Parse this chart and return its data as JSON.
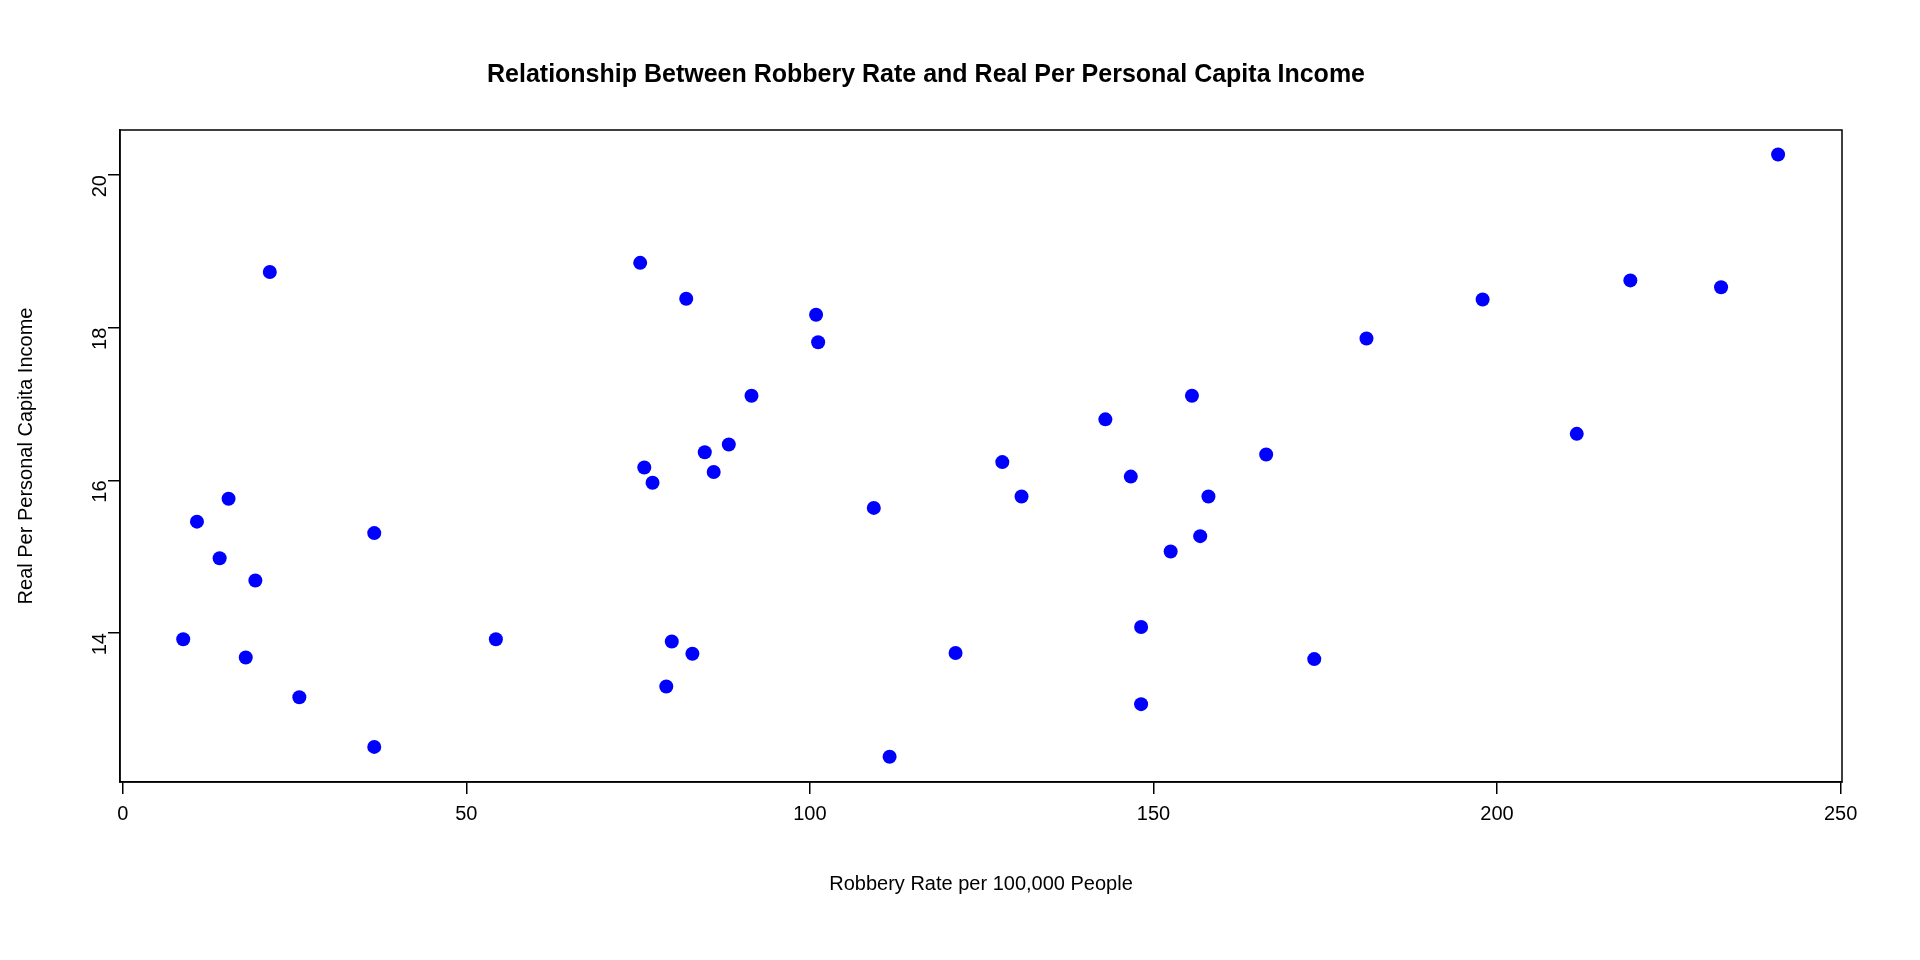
{
  "chart_data": {
    "type": "scatter",
    "title": "Relationship Between Robbery Rate and Real Per Personal Capita Income",
    "xlabel": "Robbery Rate per 100,000 People",
    "ylabel": "Real Per Personal Capita Income",
    "x": [
      8.8,
      10.8,
      14.1,
      15.4,
      19.3,
      17.9,
      21.4,
      25.7,
      36.6,
      36.6,
      54.3,
      75.3,
      82.0,
      75.9,
      77.1,
      84.7,
      86.0,
      79.9,
      82.9,
      79.1,
      88.2,
      91.5,
      100.9,
      101.2,
      109.3,
      111.6,
      121.2,
      128.0,
      130.8,
      143.0,
      146.7,
      148.2,
      148.2,
      152.5,
      155.6,
      156.8,
      158.0,
      166.4,
      173.4,
      181.0,
      197.9,
      211.6,
      219.4,
      232.6,
      240.9
    ],
    "series": [
      {
        "color": "#0000ff",
        "values": [
          13.92,
          15.46,
          14.98,
          15.76,
          14.69,
          13.68,
          18.73,
          13.16,
          15.31,
          12.51,
          13.92,
          18.85,
          18.38,
          16.17,
          15.97,
          16.37,
          16.11,
          13.89,
          13.73,
          13.3,
          16.47,
          17.11,
          18.17,
          17.81,
          15.64,
          12.38,
          13.74,
          16.24,
          15.79,
          16.8,
          16.05,
          14.08,
          13.07,
          15.07,
          17.11,
          15.27,
          15.79,
          16.34,
          13.66,
          17.86,
          18.37,
          16.61,
          18.62,
          18.53,
          20.27
        ]
      }
    ],
    "xlim": [
      -0.4,
      250.2
    ],
    "ylim": [
      12.05,
      20.59
    ],
    "xticks": [
      0,
      50,
      100,
      150,
      200,
      250
    ],
    "yticks": [
      14,
      16,
      18,
      20
    ],
    "marker": "circle",
    "grid": false,
    "legend": false
  }
}
